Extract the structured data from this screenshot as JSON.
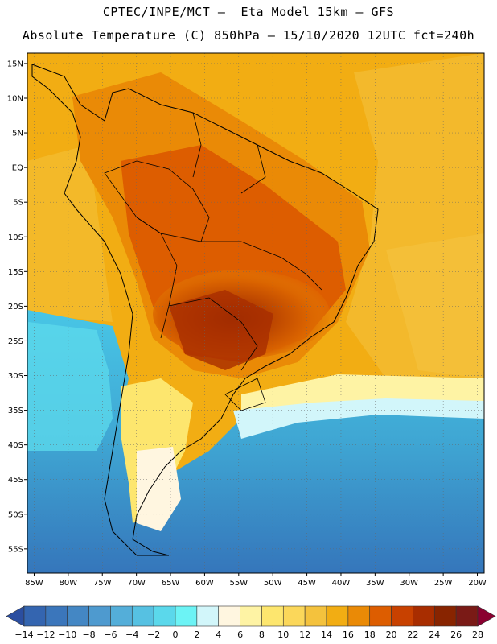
{
  "header": {
    "line1": "CPTEC/INPE/MCT –  Eta Model 15km – GFS",
    "line2": "Absolute Temperature (C) 850hPa – 15/10/2020 12UTC fct=240h"
  },
  "map": {
    "lat_labels": [
      "15N",
      "10N",
      "5N",
      "EQ",
      "5S",
      "10S",
      "15S",
      "20S",
      "25S",
      "30S",
      "35S",
      "40S",
      "45S",
      "50S",
      "55S"
    ],
    "lon_labels": [
      "85W",
      "80W",
      "75W",
      "70W",
      "65W",
      "60W",
      "55W",
      "50W",
      "45W",
      "40W",
      "35W",
      "30W",
      "25W",
      "20W"
    ],
    "lat_range": [
      16.5,
      -58.5
    ],
    "lon_range": [
      -86,
      -19
    ]
  },
  "colorbar": {
    "labels": [
      "-14",
      "-12",
      "-10",
      "-8",
      "-6",
      "-4",
      "-2",
      "0",
      "2",
      "4",
      "6",
      "8",
      "10",
      "12",
      "14",
      "16",
      "18",
      "20",
      "22",
      "24",
      "26",
      "28"
    ],
    "colors": [
      "#2b4ea0",
      "#3465b0",
      "#3b76bb",
      "#4487c4",
      "#4e9acf",
      "#54aed9",
      "#56c1e2",
      "#5bd8eb",
      "#6cf3f5",
      "#d2f6fa",
      "#fff6e0",
      "#fef3a4",
      "#fde66e",
      "#fbd75a",
      "#f4c23d",
      "#f2ad13",
      "#ea8a06",
      "#dd5d00",
      "#c84100",
      "#a82d00",
      "#882400",
      "#7a1a16",
      "#8a0030"
    ]
  }
}
